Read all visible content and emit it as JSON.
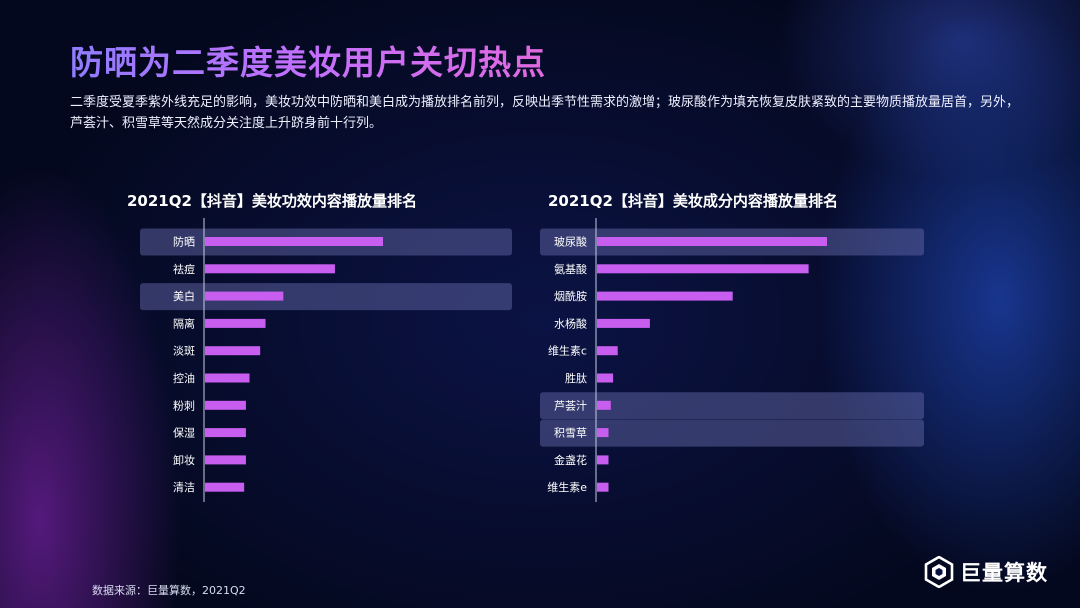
{
  "title": "防晒为二季度美妆用户关切热点",
  "description": "二季度受夏季紫外线充足的影响，美妆功效中防晒和美白成为播放排名前列，反映出季节性需求的激增；玻尿酸作为填充恢复皮肤紧致的主要物质播放量居首，另外，芦荟汁、积雪草等天然成分关注度上升跻身前十行列。",
  "source": "数据来源：巨量算数，2021Q2",
  "logo_text": "巨量算数",
  "colors": {
    "bar": "#c85ef0",
    "highlight": "#5a5f9a",
    "axis": "#c8cbe6",
    "title_gradient": [
      "#8f7cff",
      "#e06adf"
    ]
  },
  "chart_data": [
    {
      "type": "bar",
      "orientation": "horizontal",
      "title": "2021Q2【抖音】美妆功效内容播放量排名",
      "categories": [
        "防晒",
        "祛痘",
        "美白",
        "隔离",
        "淡斑",
        "控油",
        "粉刺",
        "保湿",
        "卸妆",
        "清洁"
      ],
      "values": [
        100,
        73,
        44,
        34,
        31,
        25,
        23,
        23,
        23,
        22
      ],
      "highlighted": [
        "防晒",
        "美白"
      ],
      "xlim": [
        0,
        100
      ],
      "grid": false,
      "legend": "none"
    },
    {
      "type": "bar",
      "orientation": "horizontal",
      "title": "2021Q2【抖音】美妆成分内容播放量排名",
      "categories": [
        "玻尿酸",
        "氨基酸",
        "烟酰胺",
        "水杨酸",
        "维生素c",
        "胜肽",
        "芦荟汁",
        "积雪草",
        "金盏花",
        "维生素e"
      ],
      "values": [
        100,
        92,
        59,
        23,
        9,
        7,
        6,
        5,
        5,
        5
      ],
      "highlighted": [
        "玻尿酸",
        "芦荟汁",
        "积雪草"
      ],
      "xlim": [
        0,
        100
      ],
      "grid": false,
      "legend": "none"
    }
  ]
}
